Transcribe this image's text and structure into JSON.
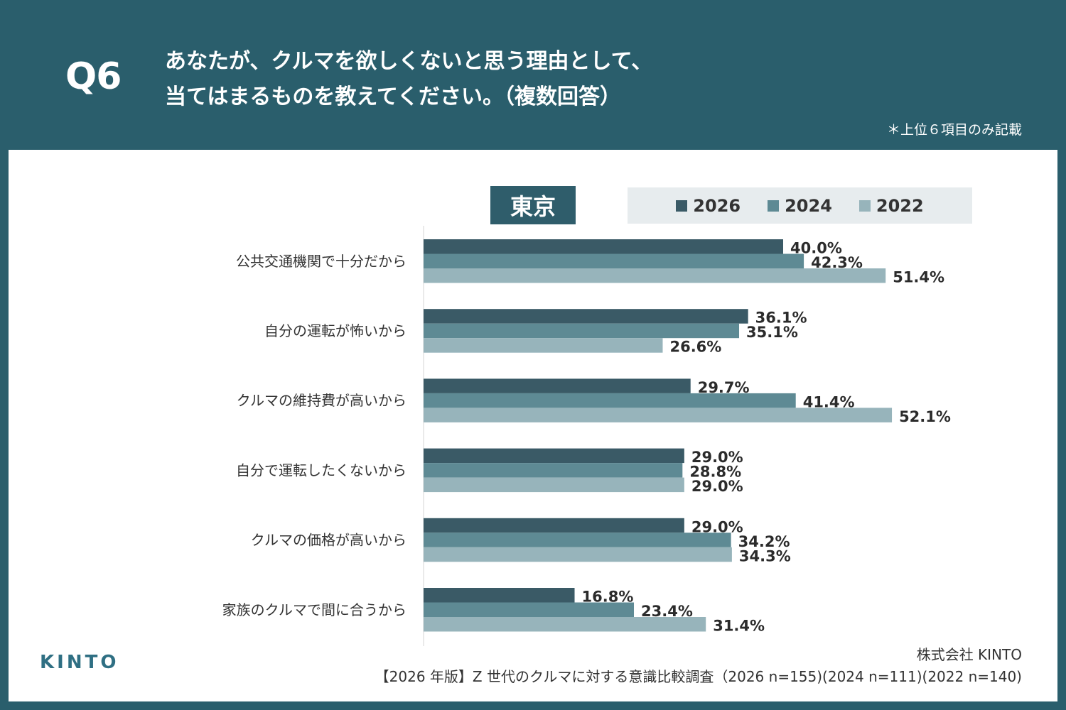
{
  "header": {
    "q_label": "Q6",
    "title_line1": "あなたが、クルマを欲しくないと思う理由として、",
    "title_line2": "当てはまるものを教えてください。（複数回答）",
    "note": "＊上位６項目のみ記載"
  },
  "region_label": "東京",
  "colors": {
    "background": "#2a5e6c",
    "series_2026": "#3a5a66",
    "series_2024": "#5e8a94",
    "series_2022": "#97b4bb"
  },
  "chart_data": {
    "type": "bar",
    "orientation": "horizontal",
    "categories": [
      "公共交通機関で十分だから",
      "自分の運転が怖いから",
      "クルマの維持費が高いから",
      "自分で運転したくないから",
      "クルマの価格が高いから",
      "家族のクルマで間に合うから"
    ],
    "series": [
      {
        "name": "2026",
        "values": [
          40.0,
          36.1,
          29.7,
          29.0,
          29.0,
          16.8
        ],
        "labels": [
          "40.0%",
          "36.1%",
          "29.7%",
          "29.0%",
          "29.0%",
          "16.8%"
        ]
      },
      {
        "name": "2024",
        "values": [
          42.3,
          35.1,
          41.4,
          28.8,
          34.2,
          23.4
        ],
        "labels": [
          "42.3%",
          "35.1%",
          "41.4%",
          "28.8%",
          "34.2%",
          "23.4%"
        ]
      },
      {
        "name": "2022",
        "values": [
          51.4,
          26.6,
          52.1,
          29.0,
          34.3,
          31.4
        ],
        "labels": [
          "51.4%",
          "26.6%",
          "52.1%",
          "29.0%",
          "34.3%",
          "31.4%"
        ]
      }
    ],
    "xlim": [
      0,
      60
    ],
    "grid": false,
    "legend": "top-right"
  },
  "footer": {
    "logo": "KINTO",
    "company": "株式会社 KINTO",
    "source": "【2026 年版】Z 世代のクルマに対する意識比較調査（2026 n=155)(2024 n=111)(2022 n=140)"
  }
}
